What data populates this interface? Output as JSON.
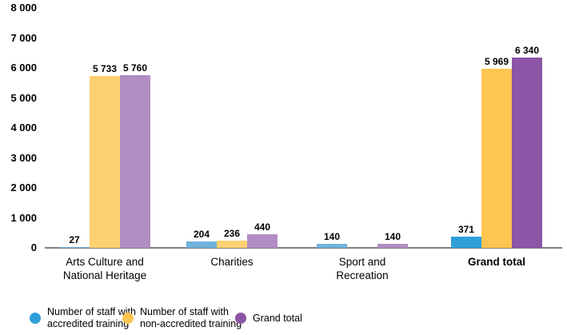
{
  "chart_data": {
    "type": "bar",
    "title": "",
    "xlabel": "",
    "ylabel": "",
    "ylim": [
      0,
      8000
    ],
    "ytick_interval": 1000,
    "grid": false,
    "legend_position": "bottom",
    "axis_color": "#7f7f7f",
    "yticks": [
      {
        "value": 8000,
        "label": "8 000"
      },
      {
        "value": 7000,
        "label": "7 000"
      },
      {
        "value": 6000,
        "label": "6 000"
      },
      {
        "value": 5000,
        "label": "5 000"
      },
      {
        "value": 4000,
        "label": "4 000"
      },
      {
        "value": 3000,
        "label": "3 000"
      },
      {
        "value": 2000,
        "label": "2 000"
      },
      {
        "value": 1000,
        "label": "1 000"
      },
      {
        "value": 0,
        "label": "0"
      }
    ],
    "categories": [
      {
        "id": "arts-culture-and-national-heritage",
        "label_lines": [
          "Arts Culture and",
          "National Heritage"
        ],
        "emphasis": false
      },
      {
        "id": "charities",
        "label_lines": [
          "Charities"
        ],
        "emphasis": false
      },
      {
        "id": "sport-and-recreation",
        "label_lines": [
          "Sport and",
          "Recreation"
        ],
        "emphasis": false
      },
      {
        "id": "grand-total",
        "label_lines": [
          "Grand total"
        ],
        "emphasis": true
      }
    ],
    "series": [
      {
        "name": "Number of staff with accredited training",
        "legend_lines": [
          "Number of staff with",
          "accredited training"
        ],
        "color": "#6FB2DD",
        "emphasis_color": "#2E9FD9",
        "legend_color": "#2E9FD9",
        "values": [
          27,
          204,
          140,
          371
        ],
        "value_labels": [
          "27",
          "204",
          "140",
          "371"
        ]
      },
      {
        "name": "Number of staff with non-accredited training",
        "legend_lines": [
          "Number of staff with",
          "non-accredited training"
        ],
        "color": "#FCD171",
        "emphasis_color": "#FDC551",
        "legend_color": "#FDC551",
        "values": [
          5733,
          236,
          null,
          5969
        ],
        "value_labels": [
          "5 733",
          "236",
          "",
          "5 969"
        ]
      },
      {
        "name": "Grand total",
        "legend_lines": [
          "Grand total"
        ],
        "color": "#B18DC3",
        "emphasis_color": "#8C55A5",
        "legend_color": "#8C55A5",
        "values": [
          5760,
          440,
          140,
          6340
        ],
        "value_labels": [
          "5 760",
          "440",
          "140",
          "6 340"
        ]
      }
    ]
  }
}
